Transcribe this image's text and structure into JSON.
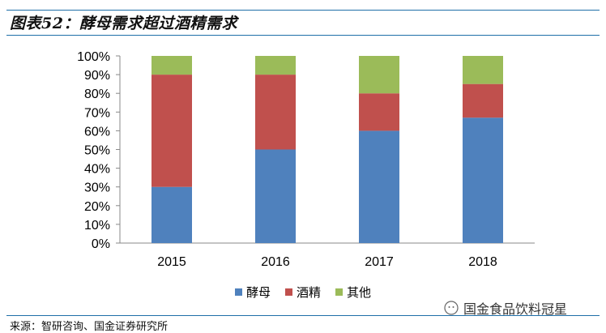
{
  "header": {
    "title": "图表52：酵母需求超过酒精需求"
  },
  "footer": {
    "source": "来源：智研咨询、国金证券研究所"
  },
  "watermark": {
    "text": "国金食品饮料冠星"
  },
  "colors": {
    "yeast": "#4f81bd",
    "alcohol": "#c0504d",
    "other": "#9bbb59",
    "rule": "#1f6fa8"
  },
  "chart_data": {
    "type": "bar",
    "stacked": true,
    "categories": [
      "2015",
      "2016",
      "2017",
      "2018"
    ],
    "series": [
      {
        "name": "酵母",
        "values": [
          30,
          50,
          60,
          67
        ]
      },
      {
        "name": "酒精",
        "values": [
          60,
          40,
          20,
          18
        ]
      },
      {
        "name": "其他",
        "values": [
          10,
          10,
          20,
          15
        ]
      }
    ],
    "yticks": [
      "0%",
      "10%",
      "20%",
      "30%",
      "40%",
      "50%",
      "60%",
      "70%",
      "80%",
      "90%",
      "100%"
    ],
    "ylim": [
      0,
      100
    ],
    "grid": false,
    "legend": "bottom"
  }
}
